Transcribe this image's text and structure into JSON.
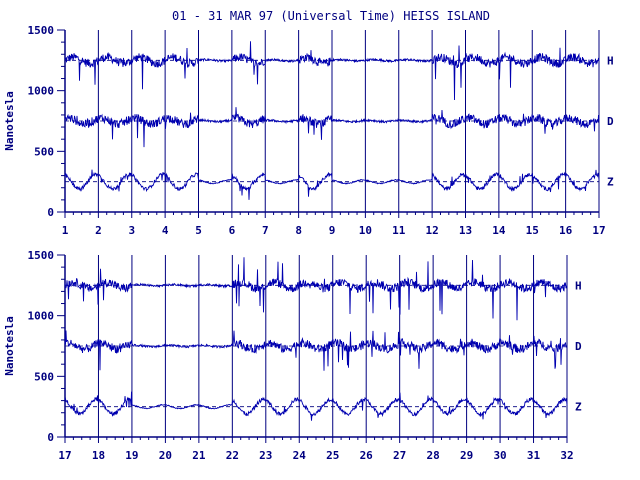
{
  "title": "01 - 31 MAR 97 (Universal Time) HEISS ISLAND",
  "colors": {
    "line": "#0000b0",
    "axis": "#000080",
    "text": "#000080",
    "background": "#ffffff"
  },
  "chart_data": [
    {
      "type": "line",
      "ylabel": "Nanotesla",
      "ylim": [
        0,
        1500
      ],
      "yticks": [
        "0",
        "500",
        "1000",
        "1500"
      ],
      "xlim": [
        1,
        17
      ],
      "xticks": [
        "1",
        "2",
        "3",
        "4",
        "5",
        "6",
        "7",
        "8",
        "9",
        "10",
        "11",
        "12",
        "13",
        "14",
        "15",
        "16",
        "17"
      ],
      "baselines": [
        1250,
        750,
        250
      ],
      "series": [
        {
          "name": "H",
          "base": 1250
        },
        {
          "name": "D",
          "base": 750
        },
        {
          "name": "Z",
          "base": 250
        }
      ],
      "disturbed_days": [
        1,
        2,
        3,
        4,
        6,
        8,
        12,
        13,
        14,
        15,
        16
      ]
    },
    {
      "type": "line",
      "ylabel": "Nanotesla",
      "ylim": [
        0,
        1500
      ],
      "yticks": [
        "0",
        "500",
        "1000",
        "1500"
      ],
      "xlim": [
        17,
        32
      ],
      "xticks": [
        "17",
        "18",
        "19",
        "20",
        "21",
        "22",
        "23",
        "24",
        "25",
        "26",
        "27",
        "28",
        "29",
        "30",
        "31",
        "32"
      ],
      "baselines": [
        1250,
        750,
        250
      ],
      "series": [
        {
          "name": "H",
          "base": 1250
        },
        {
          "name": "D",
          "base": 750
        },
        {
          "name": "Z",
          "base": 250
        }
      ],
      "disturbed_days": [
        17,
        18,
        22,
        23,
        24,
        25,
        26,
        27,
        28,
        29,
        30,
        31
      ]
    }
  ]
}
